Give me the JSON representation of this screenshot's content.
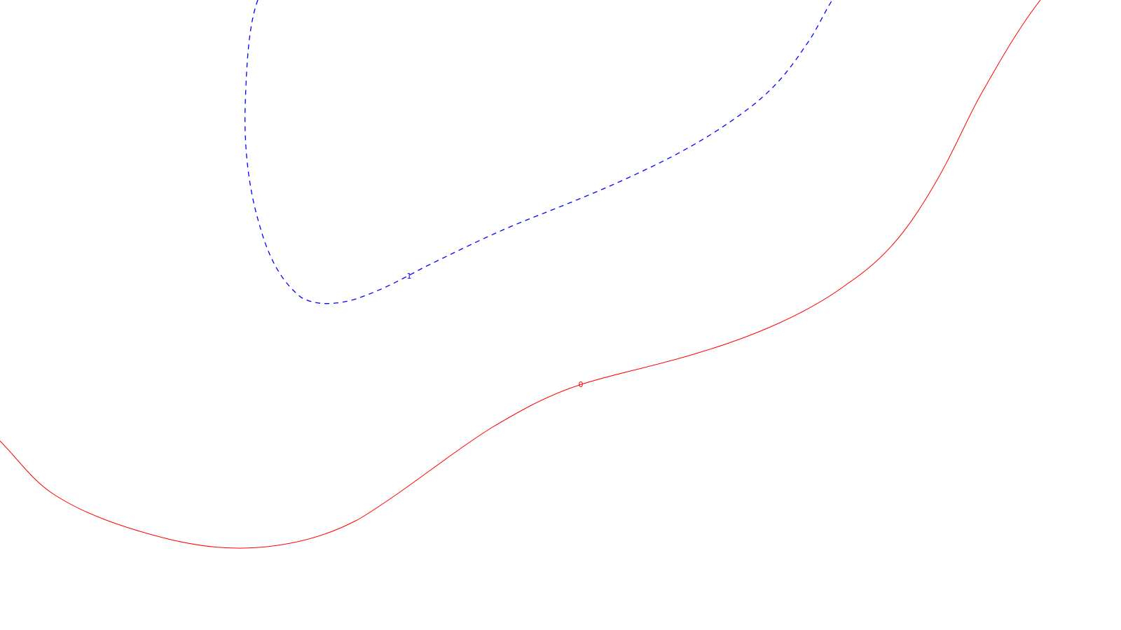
{
  "contours": [
    {
      "id": "contour-0",
      "label": "0",
      "color": "#ff0000",
      "style": "solid"
    },
    {
      "id": "contour-1",
      "label": "1",
      "color": "#0000ff",
      "style": "dashed"
    }
  ]
}
